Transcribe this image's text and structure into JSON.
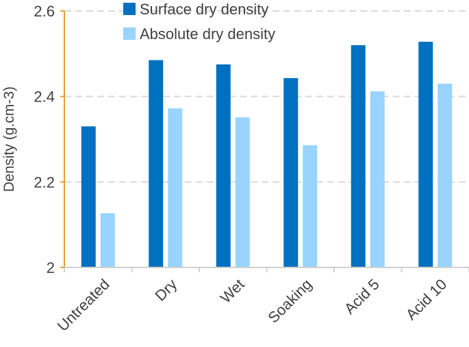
{
  "chart_data": {
    "type": "bar",
    "categories": [
      "Untreated",
      "Dry",
      "Wet",
      "Soaking",
      "Acid 5",
      "Acid 10"
    ],
    "series": [
      {
        "name": "Surface dry density",
        "values": [
          2.33,
          2.485,
          2.475,
          2.443,
          2.52,
          2.528
        ],
        "color": "#0070c0"
      },
      {
        "name": "Absolute dry density",
        "values": [
          2.127,
          2.372,
          2.351,
          2.286,
          2.412,
          2.43
        ],
        "color": "#99d3ff"
      }
    ],
    "title": "",
    "xlabel": "",
    "ylabel": "Density (g.cm-3)",
    "ylim": [
      2,
      2.6
    ],
    "yticks": [
      2,
      2.2,
      2.4,
      2.6
    ],
    "ytick_labels": [
      "2",
      "2.2",
      "2.4",
      "2.6"
    ],
    "grid": true,
    "legend_position": "top",
    "axis_color": "#e0a030",
    "grid_color": "#d9d9d9"
  }
}
